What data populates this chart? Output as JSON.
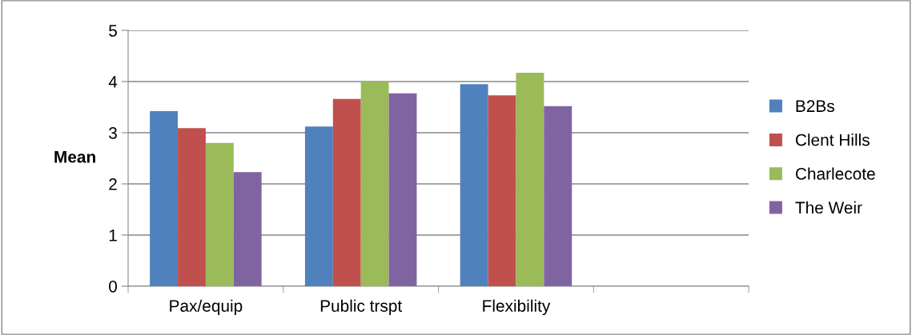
{
  "chart_data": {
    "type": "bar",
    "ylabel": "Mean",
    "categories": [
      "Pax/equip",
      "Public trspt",
      "Flexibility",
      null
    ],
    "series": [
      {
        "name": "B2Bs",
        "color": "#4f81bd",
        "values": [
          3.42,
          3.12,
          3.95,
          null
        ]
      },
      {
        "name": "Clent Hills",
        "color": "#c0504d",
        "values": [
          3.09,
          3.66,
          3.73,
          null
        ]
      },
      {
        "name": "Charlecote",
        "color": "#9bbb59",
        "values": [
          2.8,
          4.0,
          4.17,
          null
        ]
      },
      {
        "name": "The Weir",
        "color": "#8064a2",
        "values": [
          2.23,
          3.77,
          3.52,
          null
        ]
      }
    ],
    "ylim": [
      0,
      5
    ],
    "yticks": [
      0,
      1,
      2,
      3,
      4,
      5
    ],
    "grid": "y",
    "legend": "right"
  }
}
